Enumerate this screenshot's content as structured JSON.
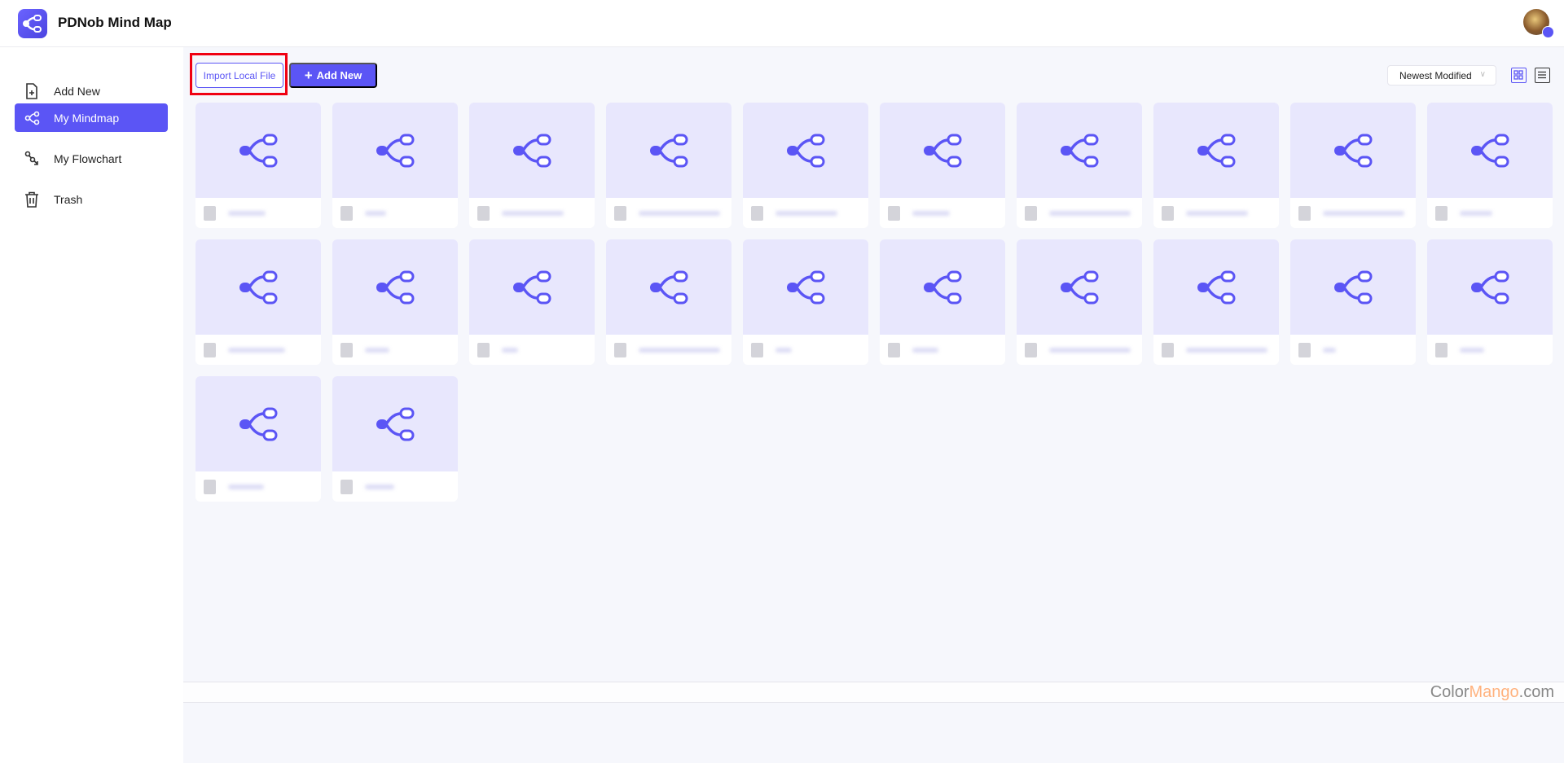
{
  "header": {
    "app_title": "PDNob Mind Map"
  },
  "sidebar": {
    "items": [
      {
        "label": "Add New",
        "icon": "file-plus-icon",
        "active": false
      },
      {
        "label": "My Mindmap",
        "icon": "mindmap-icon",
        "active": true
      },
      {
        "label": "My Flowchart",
        "icon": "flowchart-icon",
        "active": false
      },
      {
        "label": "Trash",
        "icon": "trash-icon",
        "active": false
      }
    ]
  },
  "toolbar": {
    "import_label": "Import Local File",
    "add_new_label": "Add New",
    "sort_value": "Newest Modified"
  },
  "colors": {
    "accent": "#5b55f5",
    "thumb_bg": "#e8e7fd",
    "highlight": "#f00012"
  },
  "files_count": 22,
  "watermark": {
    "part1": "Color",
    "part2": "Mango",
    "part3": ".com"
  }
}
